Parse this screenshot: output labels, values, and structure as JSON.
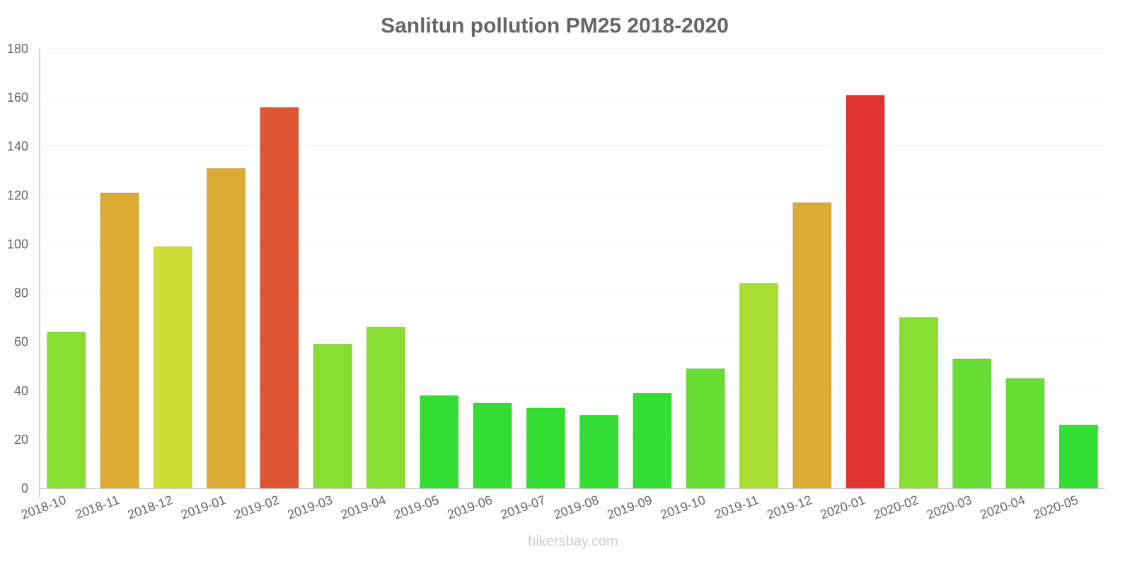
{
  "chart_data": {
    "type": "bar",
    "title": "Sanlitun pollution PM25 2018-2020",
    "xlabel": "",
    "ylabel": "",
    "ylim": [
      0,
      180
    ],
    "yticks": [
      0,
      20,
      40,
      60,
      80,
      100,
      120,
      140,
      160,
      180
    ],
    "grid": true,
    "categories": [
      "2018-10",
      "2018-11",
      "2018-12",
      "2019-01",
      "2019-02",
      "2019-03",
      "2019-04",
      "2019-05",
      "2019-06",
      "2019-07",
      "2019-08",
      "2019-09",
      "2019-10",
      "2019-11",
      "2019-12",
      "2020-01",
      "2020-02",
      "2020-03",
      "2020-04",
      "2020-05"
    ],
    "values": [
      64,
      121,
      99,
      131,
      156,
      59,
      66,
      38,
      35,
      33,
      30,
      39,
      49,
      84,
      117,
      161,
      70,
      53,
      45,
      26
    ],
    "colors": [
      "#88dd33",
      "#ddaa33",
      "#ccdd33",
      "#ddaa33",
      "#dd5533",
      "#88dd33",
      "#88dd33",
      "#33dd33",
      "#33dd33",
      "#33dd33",
      "#33dd33",
      "#33dd33",
      "#66dd33",
      "#aadd33",
      "#ddaa33",
      "#dd3333",
      "#88dd33",
      "#66dd33",
      "#66dd33",
      "#33dd33"
    ]
  },
  "watermark": "hikersbay.com"
}
